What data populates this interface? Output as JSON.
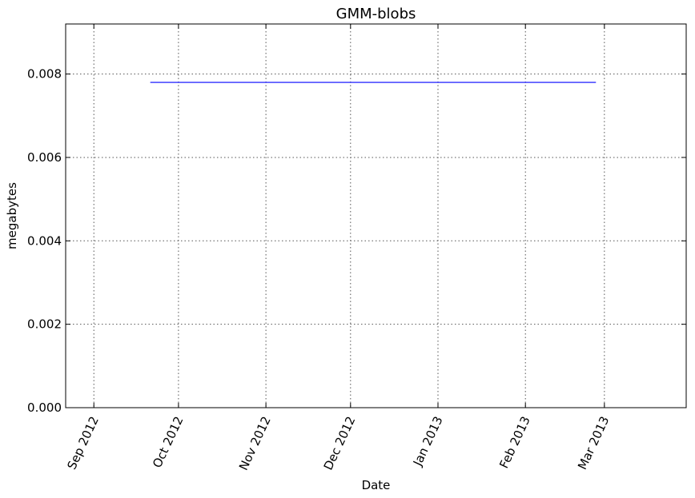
{
  "chart_data": {
    "type": "line",
    "title": "GMM-blobs",
    "xlabel": "Date",
    "ylabel": "megabytes",
    "x_type": "date",
    "xlim": [
      "2012-08-22",
      "2013-03-30"
    ],
    "ylim": [
      0,
      0.0092
    ],
    "grid": true,
    "x_ticks": [
      {
        "date": "2012-09-01",
        "label": "Sep 2012"
      },
      {
        "date": "2012-10-01",
        "label": "Oct 2012"
      },
      {
        "date": "2012-11-01",
        "label": "Nov 2012"
      },
      {
        "date": "2012-12-01",
        "label": "Dec 2012"
      },
      {
        "date": "2013-01-01",
        "label": "Jan 2013"
      },
      {
        "date": "2013-02-01",
        "label": "Feb 2013"
      },
      {
        "date": "2013-03-01",
        "label": "Mar 2013"
      }
    ],
    "y_ticks": [
      {
        "value": 0,
        "label": "0.000"
      },
      {
        "value": 0.002,
        "label": "0.002"
      },
      {
        "value": 0.004,
        "label": "0.004"
      },
      {
        "value": 0.006,
        "label": "0.006"
      },
      {
        "value": 0.008,
        "label": "0.008"
      }
    ],
    "series": [
      {
        "color": "#0000ff",
        "x": [
          "2012-09-21",
          "2013-02-26"
        ],
        "y": [
          0.0078,
          0.0078
        ]
      }
    ]
  }
}
